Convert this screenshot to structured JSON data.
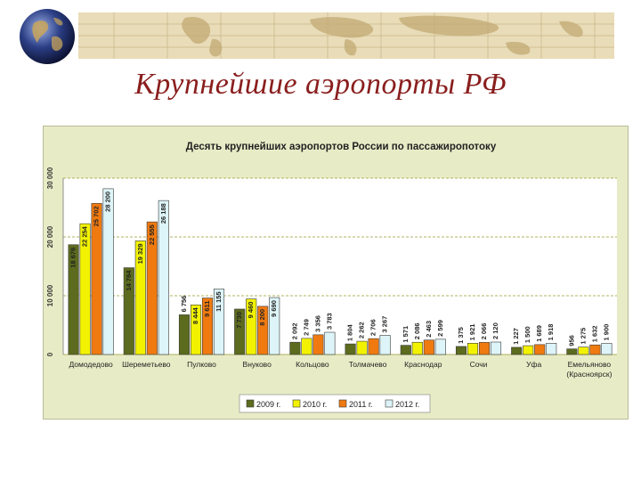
{
  "slide_title": "Крупнейшие аэропорты РФ",
  "colors": {
    "title": "#8a1e1e",
    "panel_background": "#e8ecc6",
    "plot_background": "#ffffff",
    "gridline": "#9a9a30",
    "series": [
      "#5c6b1e",
      "#f2f200",
      "#f07a10",
      "#ddf4f8"
    ]
  },
  "icons": {
    "globe": "globe-icon",
    "map": "world-map-decoration"
  },
  "chart_data": {
    "type": "bar",
    "title": "Десять крупнейших аэропортов России по пассажиропотоку",
    "categories": [
      "Домодедово",
      "Шереметьево",
      "Пулково",
      "Внуково",
      "Кольцово",
      "Толмачево",
      "Краснодар",
      "Сочи",
      "Уфа",
      "Емельяново (Красноярск)"
    ],
    "category_lines": [
      [
        "Домодедово"
      ],
      [
        "Шереметьево"
      ],
      [
        "Пулково"
      ],
      [
        "Внуково"
      ],
      [
        "Кольцово"
      ],
      [
        "Толмачево"
      ],
      [
        "Краснодар"
      ],
      [
        "Сочи"
      ],
      [
        "Уфа"
      ],
      [
        "Емельяново",
        "(Красноярск)"
      ]
    ],
    "series": [
      {
        "name": "2009 г.",
        "values": [
          18676,
          14764,
          6756,
          7730,
          2092,
          1804,
          1571,
          1375,
          1227,
          956
        ],
        "labels": [
          "18 676",
          "14 764",
          "6 756",
          "7 730",
          "2 092",
          "1 804",
          "1 571",
          "1 375",
          "1 227",
          "956"
        ]
      },
      {
        "name": "2010 г.",
        "values": [
          22254,
          19329,
          8444,
          9460,
          2749,
          2262,
          2086,
          1921,
          1500,
          1275
        ],
        "labels": [
          "22 254",
          "19 329",
          "8 444",
          "9 460",
          "2 749",
          "2 262",
          "2 086",
          "1 921",
          "1 500",
          "1 275"
        ]
      },
      {
        "name": "2011 г.",
        "values": [
          25702,
          22555,
          9611,
          8200,
          3356,
          2706,
          2463,
          2066,
          1689,
          1632
        ],
        "labels": [
          "25 702",
          "22 555",
          "9 611",
          "8 200",
          "3 356",
          "2 706",
          "2 463",
          "2 066",
          "1 689",
          "1 632"
        ]
      },
      {
        "name": "2012 г.",
        "values": [
          28200,
          26188,
          11155,
          9690,
          3783,
          3267,
          2599,
          2120,
          1918,
          1900
        ],
        "labels": [
          "28 200",
          "26 188",
          "11 155",
          "9 690",
          "3 783",
          "3 267",
          "2 599",
          "2 120",
          "1 918",
          "1 900"
        ]
      }
    ],
    "ylim": [
      0,
      30000
    ],
    "yticks": [
      0,
      10000,
      20000,
      30000
    ],
    "ytick_labels": [
      "0",
      "10 000",
      "20 000",
      "30 000"
    ],
    "grid": true,
    "legend_position": "bottom"
  }
}
